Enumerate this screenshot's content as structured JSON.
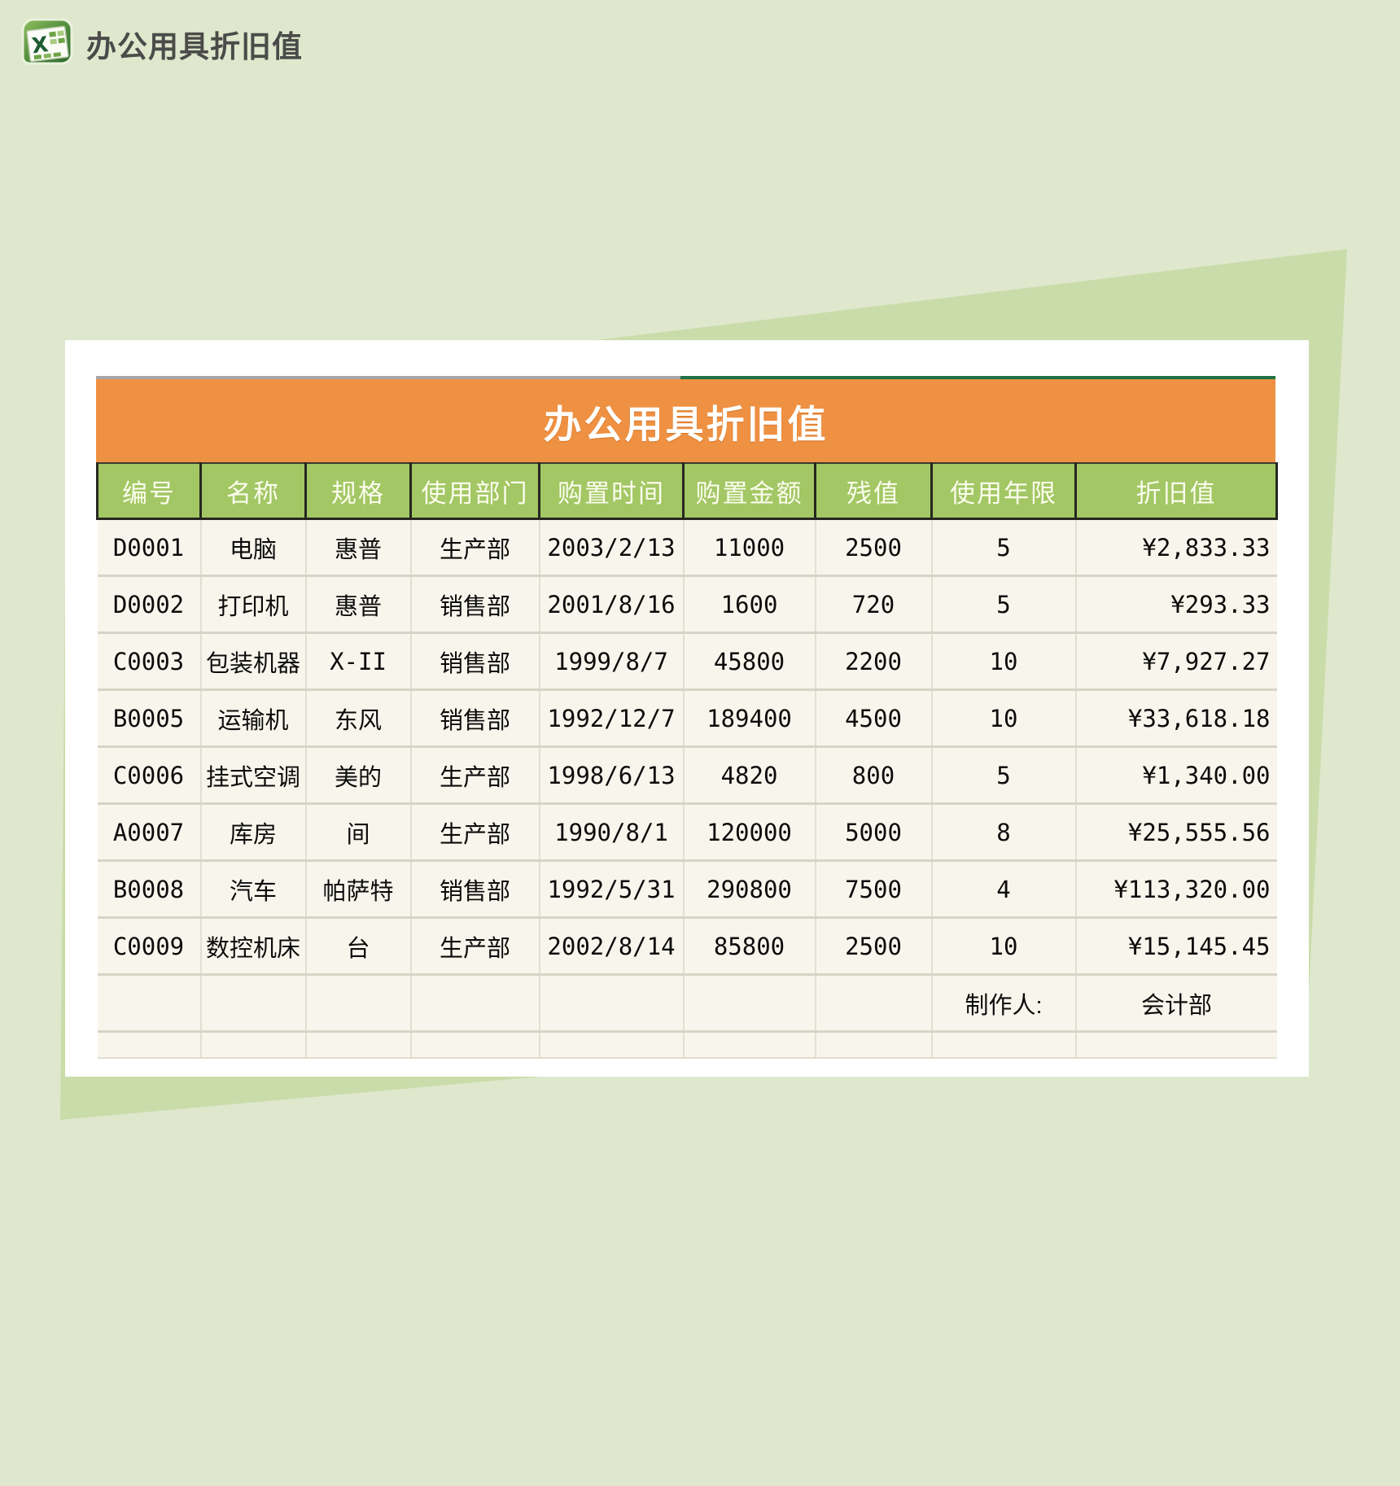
{
  "app_header": {
    "icon": "excel-icon",
    "title": "办公用具折旧值"
  },
  "table": {
    "title": "办公用具折旧值",
    "columns": [
      "编号",
      "名称",
      "规格",
      "使用部门",
      "购置时间",
      "购置金额",
      "残值",
      "使用年限",
      "折旧值"
    ],
    "rows": [
      [
        "D0001",
        "电脑",
        "惠普",
        "生产部",
        "2003/2/13",
        "11000",
        "2500",
        "5",
        "¥2,833.33"
      ],
      [
        "D0002",
        "打印机",
        "惠普",
        "销售部",
        "2001/8/16",
        "1600",
        "720",
        "5",
        "¥293.33"
      ],
      [
        "C0003",
        "包装机器",
        "X-II",
        "销售部",
        "1999/8/7",
        "45800",
        "2200",
        "10",
        "¥7,927.27"
      ],
      [
        "B0005",
        "运输机",
        "东风",
        "销售部",
        "1992/12/7",
        "189400",
        "4500",
        "10",
        "¥33,618.18"
      ],
      [
        "C0006",
        "挂式空调",
        "美的",
        "生产部",
        "1998/6/13",
        "4820",
        "800",
        "5",
        "¥1,340.00"
      ],
      [
        "A0007",
        "库房",
        "间",
        "生产部",
        "1990/8/1",
        "120000",
        "5000",
        "8",
        "¥25,555.56"
      ],
      [
        "B0008",
        "汽车",
        "帕萨特",
        "销售部",
        "1992/5/31",
        "290800",
        "7500",
        "4",
        "¥113,320.00"
      ],
      [
        "C0009",
        "数控机床",
        "台",
        "生产部",
        "2002/8/14",
        "85800",
        "2500",
        "10",
        "¥15,145.45"
      ]
    ],
    "footer": {
      "label": "制作人:",
      "value": "会计部"
    }
  },
  "colors": {
    "page_bg": "#dfe8cd",
    "backdrop_sheet": "#cbdcab",
    "card_bg": "#ffffff",
    "title_bar_orange": "#ef9142",
    "header_green": "#a3c764",
    "cell_cream": "#f8f6ec",
    "top_border_gray": "#a6a6a6",
    "top_border_green": "#1e7145"
  }
}
